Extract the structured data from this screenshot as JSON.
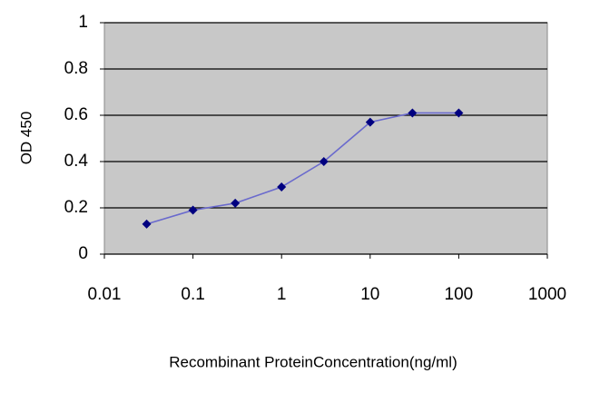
{
  "chart_data": {
    "type": "line",
    "x_label": "Recombinant ProteinConcentration(ng/ml)",
    "y_label": "OD 450",
    "x": [
      0.03,
      0.1,
      0.3,
      1,
      3,
      10,
      30,
      100
    ],
    "series": [
      {
        "color": "#000080",
        "line_color": "#6a6acd",
        "values": [
          0.13,
          0.19,
          0.22,
          0.29,
          0.4,
          0.57,
          0.61,
          0.61
        ]
      }
    ],
    "xlim": [
      0.01,
      1000
    ],
    "xticks": [
      0.01,
      0.1,
      1,
      10,
      100,
      1000
    ],
    "ylim": [
      0,
      1
    ],
    "yticks": [
      0,
      0.2,
      0.4,
      0.6,
      0.8,
      1
    ],
    "x_log": true,
    "grid": true,
    "plot_background": "#c8c8c8"
  }
}
